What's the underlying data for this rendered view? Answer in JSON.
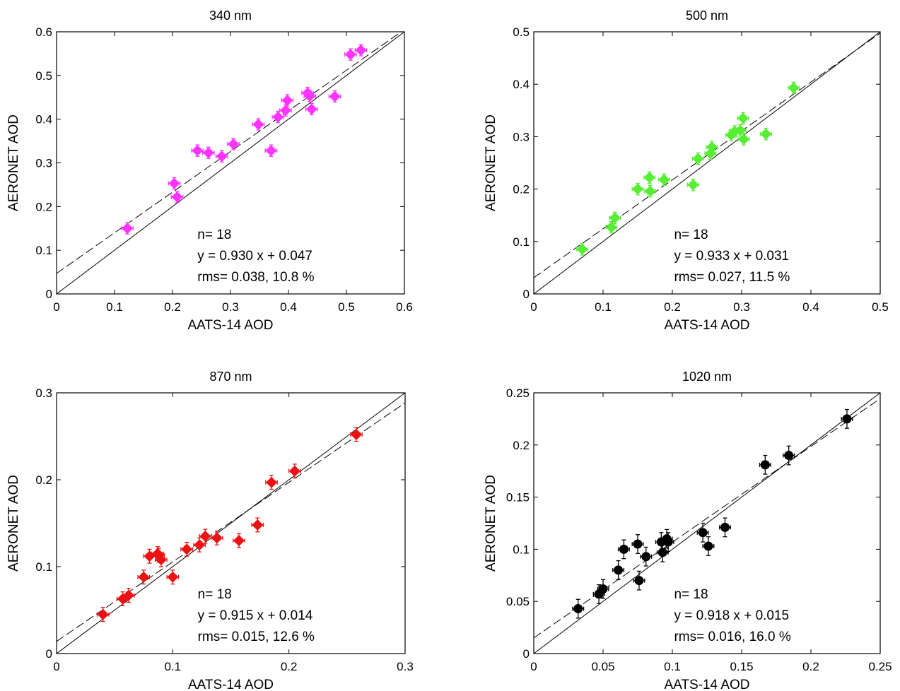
{
  "charts": {
    "stat_labels": {
      "n": "n= 18",
      "rms_prefix": "rms= "
    },
    "chart_data": [
      {
        "type": "scatter",
        "title": "340 nm",
        "xlabel": "AATS-14 AOD",
        "ylabel": "AERONET AOD",
        "xlim": [
          0,
          0.6
        ],
        "ylim": [
          0,
          0.6
        ],
        "xticks": [
          "0",
          "0.1",
          "0.2",
          "0.3",
          "0.4",
          "0.5",
          "0.6"
        ],
        "yticks": [
          "0",
          "0.1",
          "0.2",
          "0.3",
          "0.4",
          "0.5",
          "0.6"
        ],
        "marker": "diamond",
        "color": "#ff33ff",
        "n": 18,
        "fit_text": "y = 0.930 x + 0.047",
        "fit_slope": 0.93,
        "fit_intercept": 0.047,
        "rms_text": "rms= 0.038, 10.8 %",
        "x_err": 0.01,
        "y_err": 0.013,
        "points": [
          [
            0.122,
            0.15
          ],
          [
            0.203,
            0.253
          ],
          [
            0.208,
            0.222
          ],
          [
            0.243,
            0.328
          ],
          [
            0.262,
            0.323
          ],
          [
            0.285,
            0.315
          ],
          [
            0.305,
            0.343
          ],
          [
            0.348,
            0.388
          ],
          [
            0.37,
            0.328
          ],
          [
            0.382,
            0.405
          ],
          [
            0.395,
            0.42
          ],
          [
            0.398,
            0.443
          ],
          [
            0.433,
            0.46
          ],
          [
            0.437,
            0.453
          ],
          [
            0.44,
            0.423
          ],
          [
            0.48,
            0.452
          ],
          [
            0.507,
            0.548
          ],
          [
            0.525,
            0.558
          ]
        ],
        "grid": false,
        "legend": "none"
      },
      {
        "type": "scatter",
        "title": "500 nm",
        "xlabel": "AATS-14 AOD",
        "ylabel": "AERONET AOD",
        "xlim": [
          0,
          0.5
        ],
        "ylim": [
          0,
          0.5
        ],
        "xticks": [
          "0",
          "0.1",
          "0.2",
          "0.3",
          "0.4",
          "0.5"
        ],
        "yticks": [
          "0",
          "0.1",
          "0.2",
          "0.3",
          "0.4",
          "0.5"
        ],
        "marker": "diamond",
        "color": "#55ee33",
        "n": 18,
        "fit_text": "y = 0.933 x + 0.031",
        "fit_slope": 0.933,
        "fit_intercept": 0.031,
        "rms_text": "rms= 0.027, 11.5 %",
        "x_err": 0.008,
        "y_err": 0.011,
        "points": [
          [
            0.07,
            0.085
          ],
          [
            0.112,
            0.127
          ],
          [
            0.117,
            0.145
          ],
          [
            0.15,
            0.2
          ],
          [
            0.167,
            0.222
          ],
          [
            0.168,
            0.196
          ],
          [
            0.188,
            0.218
          ],
          [
            0.23,
            0.208
          ],
          [
            0.237,
            0.258
          ],
          [
            0.255,
            0.268
          ],
          [
            0.257,
            0.28
          ],
          [
            0.285,
            0.303
          ],
          [
            0.29,
            0.31
          ],
          [
            0.298,
            0.312
          ],
          [
            0.302,
            0.335
          ],
          [
            0.303,
            0.295
          ],
          [
            0.335,
            0.305
          ],
          [
            0.375,
            0.393
          ]
        ],
        "grid": false,
        "legend": "none"
      },
      {
        "type": "scatter",
        "title": "870 nm",
        "xlabel": "AATS-14 AOD",
        "ylabel": "AERONET AOD",
        "xlim": [
          0,
          0.3
        ],
        "ylim": [
          0,
          0.3
        ],
        "xticks": [
          "0",
          "0.1",
          "0.2",
          "0.3"
        ],
        "yticks": [
          "0",
          "0.1",
          "0.2",
          "0.3"
        ],
        "marker": "diamond",
        "color": "#ee1111",
        "n": 18,
        "fit_text": "y = 0.915 x + 0.014",
        "fit_slope": 0.915,
        "fit_intercept": 0.014,
        "rms_text": "rms= 0.015, 12.6 %",
        "x_err": 0.005,
        "y_err": 0.008,
        "points": [
          [
            0.04,
            0.045
          ],
          [
            0.057,
            0.063
          ],
          [
            0.062,
            0.067
          ],
          [
            0.075,
            0.088
          ],
          [
            0.08,
            0.112
          ],
          [
            0.088,
            0.113
          ],
          [
            0.09,
            0.108
          ],
          [
            0.1,
            0.088
          ],
          [
            0.112,
            0.12
          ],
          [
            0.123,
            0.125
          ],
          [
            0.128,
            0.135
          ],
          [
            0.138,
            0.133
          ],
          [
            0.157,
            0.13
          ],
          [
            0.173,
            0.148
          ],
          [
            0.185,
            0.197
          ],
          [
            0.205,
            0.21
          ],
          [
            0.258,
            0.252
          ],
          [
            0.087,
            0.115
          ]
        ],
        "grid": false,
        "legend": "none"
      },
      {
        "type": "scatter",
        "title": "1020 nm",
        "xlabel": "AATS-14 AOD",
        "ylabel": "AERONET AOD",
        "xlim": [
          0,
          0.25
        ],
        "ylim": [
          0,
          0.25
        ],
        "xticks": [
          "0",
          "0.05",
          "0.1",
          "0.15",
          "0.2",
          "0.25"
        ],
        "yticks": [
          "0",
          "0.05",
          "0.1",
          "0.15",
          "0.2",
          "0.25"
        ],
        "marker": "circle",
        "color": "#000000",
        "n": 18,
        "fit_text": "y = 0.918 x + 0.015",
        "fit_slope": 0.918,
        "fit_intercept": 0.015,
        "rms_text": "rms= 0.016, 16.0 %",
        "x_err": 0.004,
        "y_err": 0.009,
        "points": [
          [
            0.032,
            0.043
          ],
          [
            0.047,
            0.057
          ],
          [
            0.05,
            0.062
          ],
          [
            0.061,
            0.08
          ],
          [
            0.065,
            0.1
          ],
          [
            0.075,
            0.105
          ],
          [
            0.076,
            0.07
          ],
          [
            0.081,
            0.093
          ],
          [
            0.092,
            0.107
          ],
          [
            0.093,
            0.097
          ],
          [
            0.096,
            0.11
          ],
          [
            0.097,
            0.107
          ],
          [
            0.122,
            0.116
          ],
          [
            0.126,
            0.103
          ],
          [
            0.138,
            0.121
          ],
          [
            0.167,
            0.181
          ],
          [
            0.184,
            0.19
          ],
          [
            0.226,
            0.225
          ]
        ],
        "grid": false,
        "legend": "none"
      }
    ]
  }
}
